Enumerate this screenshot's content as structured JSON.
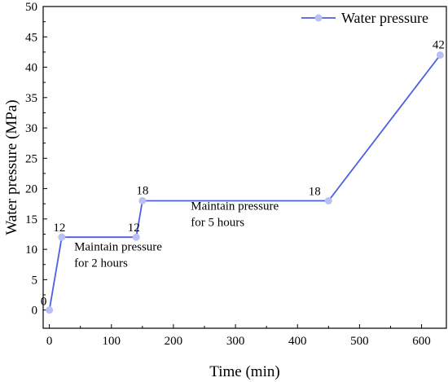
{
  "chart_data": {
    "type": "line",
    "xlabel": "Time (min)",
    "ylabel": "Water pressure (MPa)",
    "xlim": [
      -10,
      640
    ],
    "ylim": [
      -3,
      50
    ],
    "xticks": [
      0,
      100,
      200,
      300,
      400,
      500,
      600
    ],
    "yticks": [
      0,
      5,
      10,
      15,
      20,
      25,
      30,
      35,
      40,
      45,
      50
    ],
    "legend_position": "top-right",
    "grid": false,
    "series": [
      {
        "name": "Water pressure",
        "color": "#4a5ee8",
        "marker_color": "#b9c0f2",
        "x": [
          0,
          20,
          140,
          150,
          450,
          630
        ],
        "y": [
          0,
          12,
          12,
          18,
          18,
          42
        ]
      }
    ],
    "data_labels": [
      {
        "x": 0,
        "y": 0,
        "text": "0"
      },
      {
        "x": 20,
        "y": 12,
        "text": "12"
      },
      {
        "x": 140,
        "y": 12,
        "text": "12"
      },
      {
        "x": 150,
        "y": 18,
        "text": "18"
      },
      {
        "x": 450,
        "y": 18,
        "text": "18"
      },
      {
        "x": 630,
        "y": 42,
        "text": "42"
      }
    ],
    "annotations": [
      {
        "lines": [
          "Maintain pressure",
          "for 2 hours"
        ],
        "x": 40,
        "y": 9.8
      },
      {
        "lines": [
          "Maintain pressure",
          "for 5 hours"
        ],
        "x": 228,
        "y": 16.5
      }
    ]
  }
}
